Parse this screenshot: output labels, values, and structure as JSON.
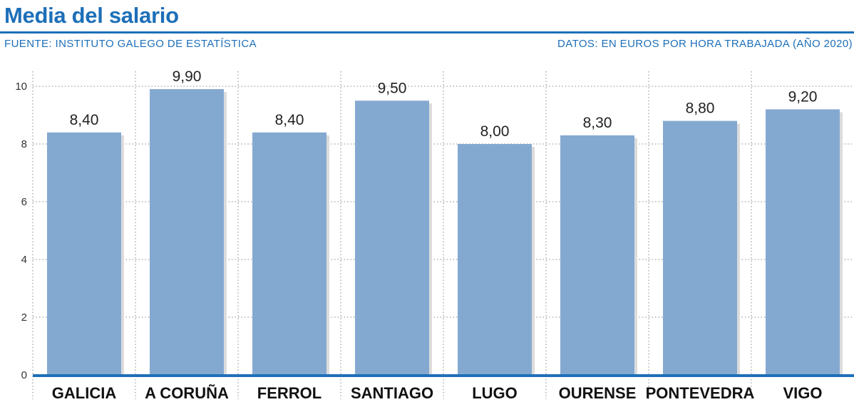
{
  "header": {
    "title": "Media del salario",
    "source": "FUENTE: INSTITUTO GALEGO DE ESTATÍSTICA",
    "units": "DATOS: EN EUROS POR HORA TRABAJADA (AÑO 2020)"
  },
  "colors": {
    "accent": "#1d6fb8",
    "bar": "#84a9d1"
  },
  "chart_data": {
    "type": "bar",
    "title": "Media del salario",
    "xlabel": "",
    "ylabel": "",
    "categories": [
      "GALICIA",
      "A CORUÑA",
      "FERROL",
      "SANTIAGO",
      "LUGO",
      "OURENSE",
      "PONTEVEDRA",
      "VIGO"
    ],
    "values": [
      8.4,
      9.9,
      8.4,
      9.5,
      8.0,
      8.3,
      8.8,
      9.2
    ],
    "value_labels": [
      "8,40",
      "9,90",
      "8,40",
      "9,50",
      "8,00",
      "8,30",
      "8,80",
      "9,20"
    ],
    "ylim": [
      0,
      10
    ],
    "yticks": [
      0,
      2,
      4,
      6,
      8,
      10
    ],
    "grid": true,
    "legend": "none"
  }
}
